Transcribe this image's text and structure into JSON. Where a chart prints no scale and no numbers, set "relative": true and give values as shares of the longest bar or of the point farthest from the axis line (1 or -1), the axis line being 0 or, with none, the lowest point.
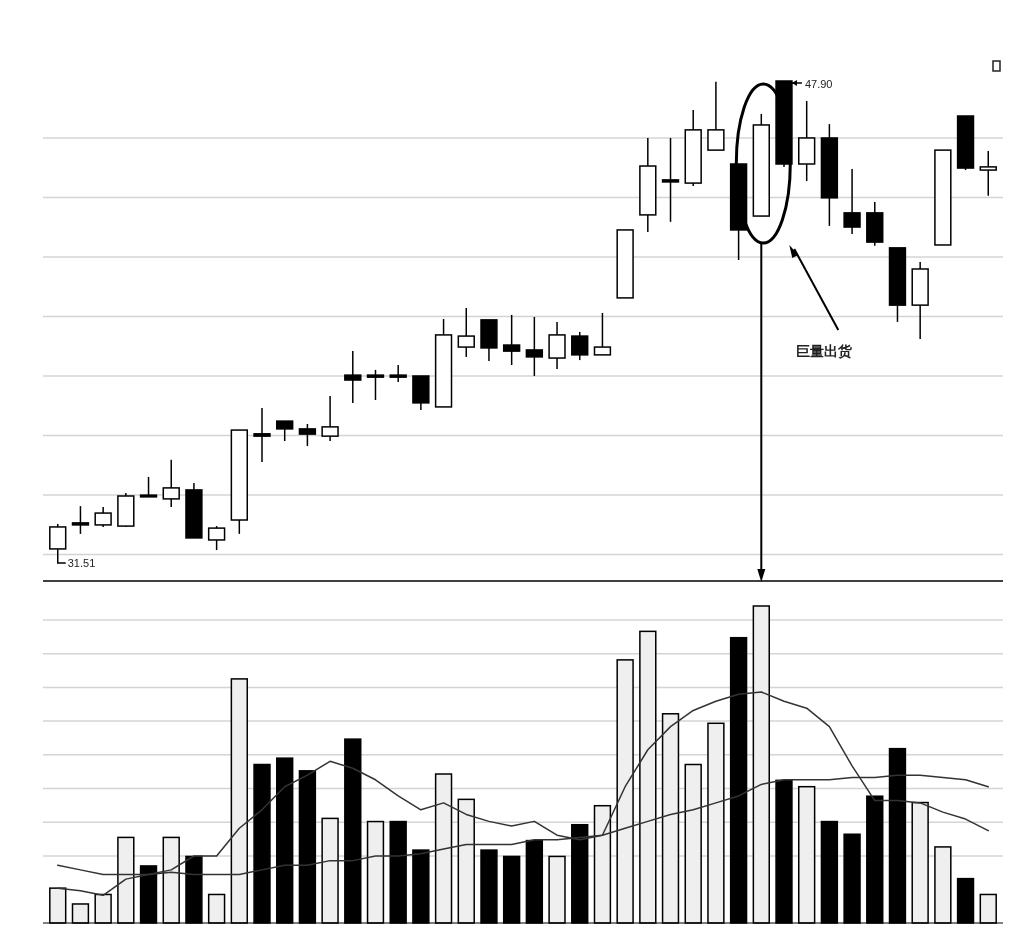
{
  "chart_data": [
    {
      "type": "candlestick",
      "grid": true,
      "categories": [
        null,
        null,
        null,
        null,
        null,
        null,
        null,
        null,
        null,
        null,
        null,
        null,
        null,
        null,
        null,
        null,
        null,
        null,
        null,
        null,
        null,
        null,
        null,
        null,
        null,
        null,
        null,
        null,
        null,
        null,
        null,
        null,
        null,
        null,
        null,
        null,
        null,
        null,
        null,
        null,
        null,
        null
      ],
      "ohlc": [
        [
          31.72,
          32.58,
          31.51,
          32.48
        ],
        [
          32.62,
          33.2,
          32.24,
          32.55
        ],
        [
          32.55,
          33.17,
          32.48,
          32.96
        ],
        [
          32.51,
          33.65,
          32.48,
          33.55
        ],
        [
          33.58,
          34.21,
          33.52,
          33.52
        ],
        [
          33.45,
          34.8,
          33.17,
          33.83
        ],
        [
          33.76,
          34.0,
          32.1,
          32.1
        ],
        [
          32.03,
          32.51,
          31.68,
          32.44
        ],
        [
          32.72,
          35.83,
          32.24,
          35.83
        ],
        [
          35.7,
          36.59,
          34.73,
          35.62
        ],
        [
          36.14,
          36.14,
          35.45,
          35.87
        ],
        [
          35.87,
          36.04,
          35.28,
          35.69
        ],
        [
          35.62,
          37.01,
          35.45,
          35.94
        ],
        [
          37.73,
          38.56,
          36.77,
          37.56
        ],
        [
          37.73,
          37.91,
          36.87,
          37.66
        ],
        [
          37.73,
          38.08,
          37.49,
          37.66
        ],
        [
          37.7,
          37.7,
          36.52,
          36.77
        ],
        [
          36.63,
          39.67,
          36.63,
          39.12
        ],
        [
          38.7,
          40.05,
          38.36,
          39.08
        ],
        [
          39.64,
          39.64,
          38.22,
          38.67
        ],
        [
          38.77,
          39.81,
          38.08,
          38.56
        ],
        [
          38.6,
          39.74,
          37.7,
          38.36
        ],
        [
          38.32,
          39.57,
          37.94,
          39.12
        ],
        [
          39.08,
          39.22,
          38.25,
          38.43
        ],
        [
          38.43,
          39.88,
          38.43,
          38.7
        ],
        [
          40.4,
          42.75,
          40.4,
          42.75
        ],
        [
          43.27,
          45.93,
          42.68,
          44.96
        ],
        [
          44.48,
          45.93,
          43.03,
          44.41
        ],
        [
          44.37,
          46.9,
          44.27,
          46.21
        ],
        [
          45.51,
          47.87,
          45.51,
          46.21
        ],
        [
          45.03,
          45.03,
          41.71,
          42.75
        ],
        [
          43.23,
          46.76,
          43.23,
          46.38
        ],
        [
          47.9,
          47.9,
          44.93,
          45.03
        ],
        [
          45.03,
          47.21,
          44.44,
          45.93
        ],
        [
          45.93,
          46.41,
          42.89,
          43.86
        ],
        [
          43.34,
          44.86,
          42.61,
          42.85
        ],
        [
          43.34,
          43.72,
          42.2,
          42.33
        ],
        [
          42.13,
          42.13,
          39.57,
          40.15
        ],
        [
          40.15,
          41.64,
          38.98,
          41.4
        ],
        [
          42.23,
          45.51,
          42.23,
          45.51
        ],
        [
          46.69,
          46.69,
          44.82,
          44.89
        ],
        [
          44.82,
          45.48,
          43.93,
          44.93
        ]
      ],
      "colors": [
        "#ffffff",
        "#000000",
        "#ffffff",
        "#ffffff",
        "#000000",
        "#ffffff",
        "#000000",
        "#ffffff",
        "#ffffff",
        "#000000",
        "#000000",
        "#000000",
        "#ffffff",
        "#000000",
        "#000000",
        "#000000",
        "#000000",
        "#ffffff",
        "#ffffff",
        "#000000",
        "#000000",
        "#000000",
        "#ffffff",
        "#000000",
        "#ffffff",
        "#ffffff",
        "#ffffff",
        "#000000",
        "#ffffff",
        "#ffffff",
        "#000000",
        "#ffffff",
        "#000000",
        "#ffffff",
        "#000000",
        "#000000",
        "#000000",
        "#000000",
        "#ffffff",
        "#ffffff",
        "#000000",
        "#ffffff"
      ],
      "annotations": [
        "47.90",
        "31.51",
        "巨量出货"
      ]
    },
    {
      "type": "bar",
      "relative": true,
      "grid": true,
      "categories": [
        null,
        null,
        null,
        null,
        null,
        null,
        null,
        null,
        null,
        null,
        null,
        null,
        null,
        null,
        null,
        null,
        null,
        null,
        null,
        null,
        null,
        null,
        null,
        null,
        null,
        null,
        null,
        null,
        null,
        null,
        null,
        null,
        null,
        null,
        null,
        null,
        null,
        null,
        null,
        null,
        null,
        null
      ],
      "series": [
        {
          "colors": [
            "#efefef",
            "#efefef",
            "#efefef",
            "#efefef",
            "#000000",
            "#efefef",
            "#000000",
            "#efefef",
            "#efefef",
            "#000000",
            "#000000",
            "#000000",
            "#efefef",
            "#000000",
            "#efefef",
            "#000000",
            "#000000",
            "#efefef",
            "#efefef",
            "#000000",
            "#000000",
            "#000000",
            "#efefef",
            "#000000",
            "#efefef",
            "#efefef",
            "#efefef",
            "#efefef",
            "#efefef",
            "#efefef",
            "#000000",
            "#efefef",
            "#000000",
            "#efefef",
            "#000000",
            "#000000",
            "#000000",
            "#000000",
            "#efefef",
            "#efefef",
            "#000000",
            "#efefef"
          ],
          "values": [
            0.11,
            0.06,
            0.09,
            0.27,
            0.18,
            0.27,
            0.21,
            0.09,
            0.77,
            0.5,
            0.52,
            0.48,
            0.33,
            0.58,
            0.32,
            0.32,
            0.23,
            0.47,
            0.39,
            0.23,
            0.21,
            0.26,
            0.21,
            0.31,
            0.37,
            0.83,
            0.92,
            0.66,
            0.5,
            0.63,
            0.9,
            1,
            0.45,
            0.43,
            0.32,
            0.28,
            0.4,
            0.55,
            0.38,
            0.24,
            0.14,
            0.09
          ]
        }
      ]
    },
    {
      "type": "line",
      "relative": true,
      "categories": [
        null,
        null,
        null,
        null,
        null,
        null,
        null,
        null,
        null,
        null,
        null,
        null,
        null,
        null,
        null,
        null,
        null,
        null,
        null,
        null,
        null,
        null,
        null,
        null,
        null,
        null,
        null,
        null,
        null,
        null,
        null,
        null,
        null,
        null,
        null,
        null,
        null,
        null,
        null,
        null,
        null,
        null
      ],
      "series": [
        {
          "color": "#333333",
          "values": [
            0.15,
            0.14,
            0.12,
            0.19,
            0.21,
            0.23,
            0.29,
            0.29,
            0.41,
            0.49,
            0.59,
            0.64,
            0.7,
            0.67,
            0.62,
            0.55,
            0.49,
            0.52,
            0.47,
            0.44,
            0.42,
            0.44,
            0.38,
            0.36,
            0.38,
            0.59,
            0.75,
            0.85,
            0.92,
            0.96,
            0.99,
            1,
            0.96,
            0.93,
            0.85,
            0.68,
            0.53,
            0.53,
            0.52,
            0.48,
            0.45,
            0.4
          ]
        },
        {
          "color": "#333333",
          "values": [
            0.25,
            0.23,
            0.21,
            0.21,
            0.21,
            0.22,
            0.21,
            0.21,
            0.21,
            0.23,
            0.25,
            0.25,
            0.27,
            0.27,
            0.29,
            0.29,
            0.3,
            0.32,
            0.34,
            0.34,
            0.34,
            0.36,
            0.36,
            0.37,
            0.38,
            0.41,
            0.44,
            0.47,
            0.49,
            0.52,
            0.55,
            0.6,
            0.62,
            0.62,
            0.62,
            0.63,
            0.63,
            0.64,
            0.64,
            0.63,
            0.62,
            0.59
          ]
        }
      ]
    }
  ]
}
